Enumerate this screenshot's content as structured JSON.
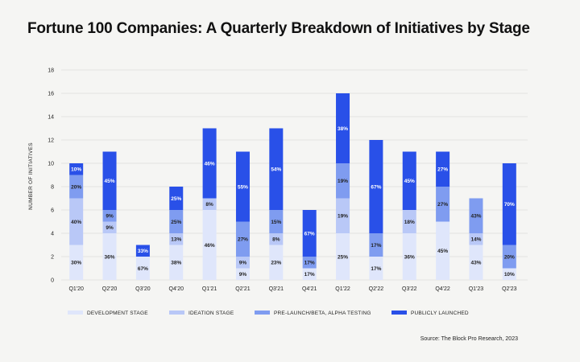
{
  "chart_data": {
    "type": "bar",
    "stacked": true,
    "title": "Fortune 100 Companies: A Quarterly Breakdown of Initiatives by Stage",
    "ylabel": "NUMBER OF INITIATIVES",
    "xlabel": "",
    "ylim": [
      0,
      18
    ],
    "yticks": [
      0,
      2,
      4,
      6,
      8,
      10,
      12,
      14,
      16,
      18
    ],
    "grid": true,
    "legend_position": "bottom",
    "categories": [
      "Q1'20",
      "Q2'20",
      "Q3'20",
      "Q4'20",
      "Q1'21",
      "Q2'21",
      "Q3'21",
      "Q4'21",
      "Q1'22",
      "Q2'22",
      "Q3'22",
      "Q4'22",
      "Q1'23",
      "Q2'23"
    ],
    "series": [
      {
        "name": "DEVELOPMENT STAGE",
        "color": "#dfe6fb",
        "values": [
          3,
          4,
          2,
          3,
          6,
          1,
          3,
          1,
          4,
          2,
          4,
          5,
          3,
          1
        ],
        "labels": [
          "30%",
          "36%",
          "67%",
          "38%",
          "46%",
          "9%",
          "23%",
          "17%",
          "25%",
          "17%",
          "36%",
          "45%",
          "43%",
          "10%"
        ]
      },
      {
        "name": "IDEATION STAGE",
        "color": "#b9c8f7",
        "values": [
          4,
          1,
          0,
          1,
          1,
          1,
          1,
          0,
          3,
          0,
          2,
          0,
          1,
          0
        ],
        "labels": [
          "40%",
          "9%",
          "",
          "13%",
          "8%",
          "9%",
          "8%",
          "",
          "19%",
          "",
          "18%",
          "",
          "14%",
          ""
        ]
      },
      {
        "name": "PRE-LAUNCH/BETA, ALPHA TESTING",
        "color": "#7f9cf0",
        "values": [
          2,
          1,
          0,
          2,
          0,
          3,
          2,
          1,
          3,
          2,
          0,
          3,
          3,
          2
        ],
        "labels": [
          "20%",
          "9%",
          "",
          "25%",
          "",
          "27%",
          "15%",
          "17%",
          "19%",
          "17%",
          "",
          "27%",
          "43%",
          "20%"
        ]
      },
      {
        "name": "PUBLICLY LAUNCHED",
        "color": "#2950e8",
        "values": [
          1,
          5,
          1,
          2,
          6,
          6,
          7,
          4,
          6,
          8,
          5,
          3,
          0,
          7
        ],
        "labels": [
          "10%",
          "45%",
          "33%",
          "25%",
          "46%",
          "55%",
          "54%",
          "67%",
          "38%",
          "67%",
          "45%",
          "27%",
          "",
          "70%"
        ]
      }
    ]
  },
  "source": "Source: The Block Pro Research, 2023"
}
